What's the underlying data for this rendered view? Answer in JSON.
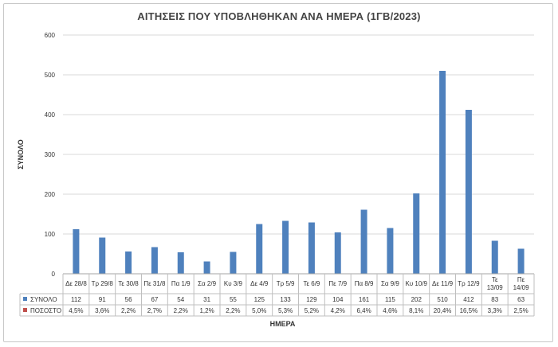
{
  "chart_data": {
    "type": "bar",
    "title": "ΑΙΤΗΣΕΙΣ ΠΟΥ ΥΠΟΒΛΗΘΗΚΑΝ ΑΝΑ ΗΜΕΡΑ (1ΓΒ/2023)",
    "xlabel": "ΗΜΕΡΑ",
    "ylabel": "ΣΥΝΟΛΟ",
    "ylim": [
      0,
      600
    ],
    "yticks": [
      "0",
      "100",
      "200",
      "300",
      "400",
      "500",
      "600"
    ],
    "grid": true,
    "categories": [
      [
        "Δε 28/8"
      ],
      [
        "Τρ 29/8"
      ],
      [
        "Τε 30/8"
      ],
      [
        "Πε 31/8"
      ],
      [
        "Πα 1/9"
      ],
      [
        "Σα 2/9"
      ],
      [
        "Κυ 3/9"
      ],
      [
        "Δε 4/9"
      ],
      [
        "Τρ 5/9"
      ],
      [
        "Τε 6/9"
      ],
      [
        "Πε 7/9"
      ],
      [
        "Πα 8/9"
      ],
      [
        "Σα 9/9"
      ],
      [
        "Κυ 10/9"
      ],
      [
        "Δε 11/9"
      ],
      [
        "Τρ 12/9"
      ],
      [
        "Τε",
        "13/09"
      ],
      [
        "Πε",
        "14/09"
      ]
    ],
    "series": [
      {
        "name": "ΣΥΝΟΛΟ",
        "color": "#4f81bd",
        "values": [
          112,
          91,
          56,
          67,
          54,
          31,
          55,
          125,
          133,
          129,
          104,
          161,
          115,
          202,
          510,
          412,
          83,
          63
        ],
        "labels": [
          "112",
          "91",
          "56",
          "67",
          "54",
          "31",
          "55",
          "125",
          "133",
          "129",
          "104",
          "161",
          "115",
          "202",
          "510",
          "412",
          "83",
          "63"
        ]
      },
      {
        "name": "ΠΟΣΟΣΤΟ",
        "color": "#c0504d",
        "labels": [
          "4,5%",
          "3,6%",
          "2,2%",
          "2,7%",
          "2,2%",
          "1,2%",
          "2,2%",
          "5,0%",
          "5,3%",
          "5,2%",
          "4,2%",
          "6,4%",
          "4,6%",
          "8,1%",
          "20,4%",
          "16,5%",
          "3,3%",
          "2,5%"
        ]
      }
    ],
    "legend_position": "data-table"
  }
}
